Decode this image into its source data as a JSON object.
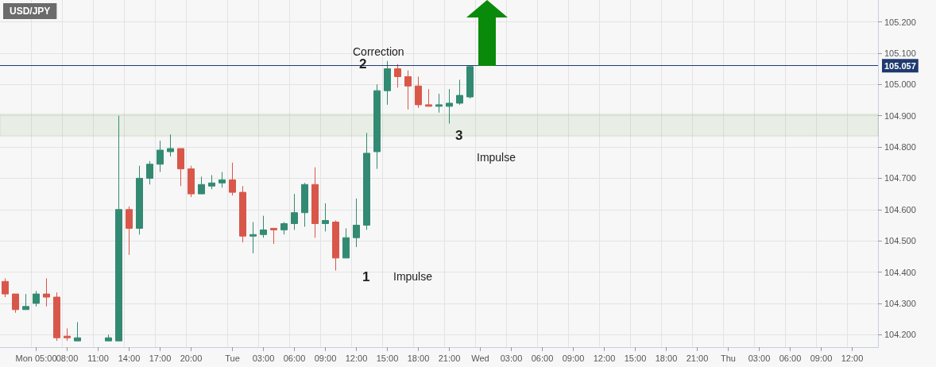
{
  "chart_data": {
    "type": "candlestick",
    "title": "USD/JPY",
    "categories": [
      null,
      null,
      null,
      "Mon 05:00",
      null,
      null,
      "08:00",
      null,
      null,
      "11:00",
      null,
      null,
      "14:00",
      null,
      null,
      "17:00",
      null,
      null,
      "20:00",
      null,
      null,
      null,
      "Tue",
      null,
      null,
      "03:00",
      null,
      null,
      "06:00",
      null,
      null,
      "09:00",
      null,
      null,
      "12:00",
      null,
      null,
      "15:00",
      null,
      null,
      "18:00",
      null,
      null,
      "21:00",
      null,
      null,
      "Wed",
      null,
      null,
      "03:00",
      null,
      null,
      "06:00",
      null,
      null,
      "09:00",
      null,
      null,
      "12:00",
      null,
      null,
      "15:00",
      null,
      null,
      "18:00",
      null,
      null,
      "21:00",
      null,
      null,
      "Thu",
      null,
      null,
      "03:00",
      null,
      null,
      "06:00",
      null,
      null,
      "09:00",
      null,
      null,
      "12:00",
      null,
      null
    ],
    "ohlc": [
      [
        104.37,
        104.38,
        104.32,
        104.33
      ],
      [
        104.33,
        104.33,
        104.27,
        104.28
      ],
      [
        104.28,
        104.33,
        104.28,
        104.29
      ],
      [
        104.3,
        104.34,
        104.29,
        104.33
      ],
      [
        104.33,
        104.38,
        104.29,
        104.32
      ],
      [
        104.32,
        104.335,
        104.18,
        104.19
      ],
      [
        104.195,
        104.22,
        104.18,
        104.19
      ],
      [
        104.18,
        104.24,
        104.18,
        104.19
      ],
      null,
      null,
      [
        104.18,
        104.2,
        104.18,
        104.19
      ],
      [
        104.18,
        104.9,
        104.18,
        104.6
      ],
      [
        104.6,
        104.61,
        104.455,
        104.54
      ],
      [
        104.54,
        104.74,
        104.52,
        104.7
      ],
      [
        104.7,
        104.755,
        104.68,
        104.745
      ],
      [
        104.745,
        104.82,
        104.72,
        104.79
      ],
      [
        104.785,
        104.84,
        104.77,
        104.795
      ],
      [
        104.795,
        104.795,
        104.675,
        104.73
      ],
      [
        104.73,
        104.74,
        104.64,
        104.65
      ],
      [
        104.65,
        104.705,
        104.65,
        104.68
      ],
      [
        104.675,
        104.71,
        104.665,
        104.685
      ],
      [
        104.685,
        104.72,
        104.67,
        104.695
      ],
      [
        104.695,
        104.75,
        104.645,
        104.655
      ],
      [
        104.655,
        104.675,
        104.495,
        104.515
      ],
      [
        104.515,
        104.56,
        104.46,
        104.52
      ],
      [
        104.52,
        104.58,
        104.51,
        104.535
      ],
      [
        104.54,
        104.54,
        104.49,
        104.535
      ],
      [
        104.535,
        104.56,
        104.52,
        104.555
      ],
      [
        104.555,
        104.65,
        104.535,
        104.59
      ],
      [
        104.59,
        104.685,
        104.545,
        104.68
      ],
      [
        104.68,
        104.735,
        104.51,
        104.555
      ],
      [
        104.555,
        104.62,
        104.53,
        104.565
      ],
      [
        104.56,
        104.565,
        104.405,
        104.445
      ],
      [
        104.445,
        104.54,
        104.445,
        104.51
      ],
      [
        104.51,
        104.635,
        104.48,
        104.55
      ],
      [
        104.55,
        104.845,
        104.535,
        104.78
      ],
      [
        104.785,
        105.0,
        104.73,
        104.98
      ],
      [
        104.98,
        105.075,
        104.935,
        105.05
      ],
      [
        105.05,
        105.065,
        104.99,
        105.025
      ],
      [
        105.025,
        105.045,
        104.92,
        104.995
      ],
      [
        104.995,
        105.025,
        104.925,
        104.935
      ],
      [
        104.935,
        104.985,
        104.93,
        104.93
      ],
      [
        104.93,
        104.97,
        104.91,
        104.935
      ],
      [
        104.93,
        104.985,
        104.875,
        104.94
      ],
      [
        104.94,
        105.015,
        104.935,
        104.965
      ],
      [
        104.96,
        105.06,
        104.955,
        105.057
      ],
      null,
      null,
      null,
      null,
      null,
      null,
      null,
      null,
      null,
      null,
      null,
      null,
      null,
      null,
      null,
      null,
      null,
      null,
      null,
      null,
      null,
      null,
      null,
      null,
      null,
      null,
      null,
      null,
      null,
      null,
      null,
      null,
      null,
      null,
      null,
      null,
      null,
      null,
      null
    ],
    "colors": [
      "#d9574a",
      "#d9574a",
      "#338a73",
      "#338a73",
      "#d9574a",
      "#d9574a",
      "#d9574a",
      "#338a73",
      null,
      null,
      "#338a73",
      "#338a73",
      "#d9574a",
      "#338a73",
      "#338a73",
      "#338a73",
      "#338a73",
      "#d9574a",
      "#d9574a",
      "#338a73",
      "#338a73",
      "#338a73",
      "#d9574a",
      "#d9574a",
      "#338a73",
      "#338a73",
      "#d9574a",
      "#338a73",
      "#338a73",
      "#338a73",
      "#d9574a",
      "#338a73",
      "#d9574a",
      "#338a73",
      "#338a73",
      "#338a73",
      "#338a73",
      "#338a73",
      "#d9574a",
      "#d9574a",
      "#d9574a",
      "#d9574a",
      "#338a73",
      "#338a73",
      "#338a73",
      "#338a73",
      null,
      null,
      null,
      null,
      null,
      null,
      null,
      null,
      null,
      null,
      null,
      null,
      null,
      null,
      null,
      null,
      null,
      null,
      null,
      null,
      null,
      null,
      null,
      null,
      null,
      null,
      null,
      null,
      null,
      null,
      null,
      null,
      null,
      null,
      null,
      null,
      null,
      null,
      null
    ],
    "ylim": [
      104.16,
      105.27
    ],
    "yticks": [
      {
        "value": 104.2,
        "label": "104.200"
      },
      {
        "value": 104.3,
        "label": "104.300"
      },
      {
        "value": 104.4,
        "label": "104.400"
      },
      {
        "value": 104.5,
        "label": "104.500"
      },
      {
        "value": 104.6,
        "label": "104.600"
      },
      {
        "value": 104.7,
        "label": "104.700"
      },
      {
        "value": 104.8,
        "label": "104.800"
      },
      {
        "value": 104.9,
        "label": "104.900"
      },
      {
        "value": 105.0,
        "label": "105.000"
      },
      {
        "value": 105.1,
        "label": "105.100"
      },
      {
        "value": 105.2,
        "label": "105.200"
      }
    ],
    "grid": true,
    "ref_lines": [
      {
        "axis": "y",
        "value": 105.057,
        "label": "105.057",
        "color": "#1f3a6e"
      }
    ],
    "bands": [
      {
        "axis": "y",
        "from": 104.835,
        "to": 104.905,
        "color": "#3a8a1a"
      }
    ],
    "annotations": [
      "Correction",
      "2",
      "3",
      "Impulse",
      "1",
      "Impulse"
    ]
  }
}
